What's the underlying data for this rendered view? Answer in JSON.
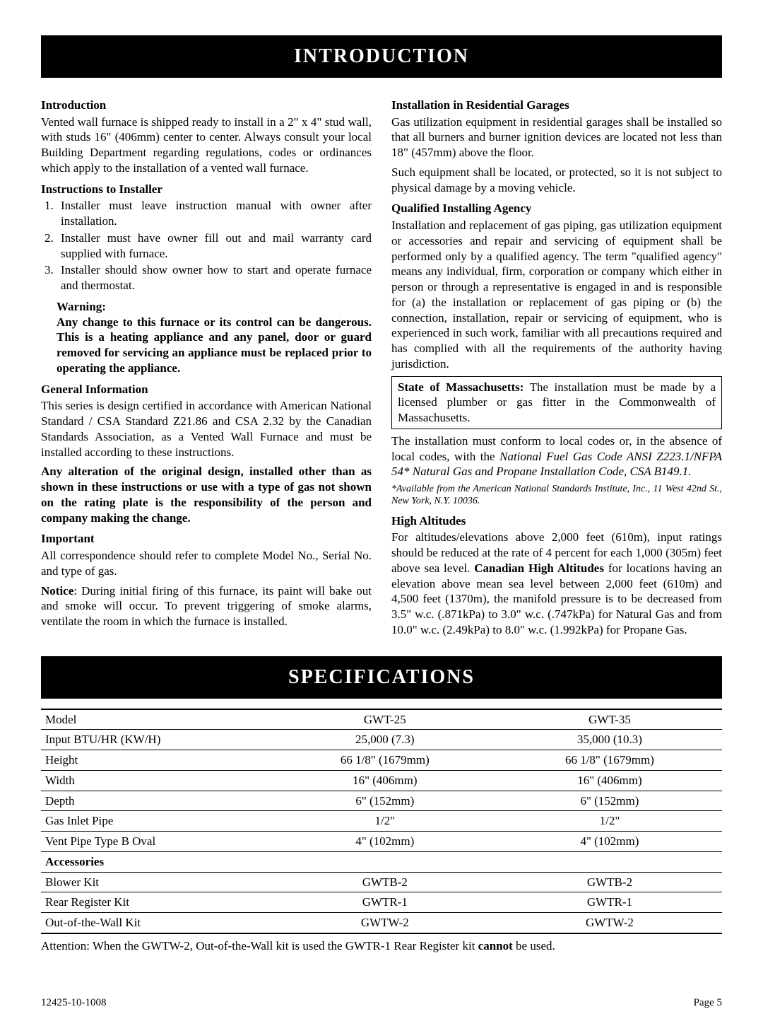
{
  "banner1": "INTRODUCTION",
  "banner2": "SPECIFICATIONS",
  "left": {
    "h_intro": "Introduction",
    "intro": "Vented wall furnace is shipped ready to install in a 2\" x 4\" stud wall, with studs 16\" (406mm) center to center. Always consult your local Building Department regarding regulations, codes or ordinances which apply to the installation of a vented wall furnace.",
    "h_instr": "Instructions to Installer",
    "li1": "Installer must leave instruction manual with owner after installation.",
    "li2": "Installer must have owner fill out and mail warranty card supplied with furnace.",
    "li3": "Installer should show owner how to start and operate furnace and thermostat.",
    "h_warn": "Warning:",
    "warn": "Any change to this furnace or its control can be dangerous. This is a heating appliance and any panel, door or guard removed for servicing an appliance must be replaced prior to operating the appliance.",
    "h_gen": "General Information",
    "gen": "This series is design certified in accordance with American National Standard / CSA Standard Z21.86 and CSA 2.32 by the Canadian Standards Association, as a Vented Wall Furnace and must be installed according to these instructions.",
    "alter": "Any alteration of the original design, installed other than as shown in these instructions or use with a type of gas not shown on the rating plate is the responsibility of the person and company making the change.",
    "h_imp": "Important",
    "imp": "All correspondence should refer to complete Model No., Serial No. and type of gas.",
    "notice_label": "Notice",
    "notice": ": During initial firing of this furnace, its paint will bake out and smoke will occur. To prevent triggering of smoke alarms, ventilate the room in which the furnace is installed."
  },
  "right": {
    "h_garage": "Installation in Residential Garages",
    "garage1": "Gas utilization equipment in residential garages shall be installed so that all burners and burner ignition devices are located not less than 18\" (457mm) above the floor.",
    "garage2": "Such equipment shall be located, or protected, so it is not subject to physical damage by a moving vehicle.",
    "h_qual": "Qualified Installing Agency",
    "qual": "Installation and replacement of gas piping, gas utilization equipment or accessories and repair and servicing of equipment shall be performed only by a qualified agency. The term \"qualified agency\" means any individual, firm, corporation or company which either in person or through a representative is engaged in and is responsible for (a) the installation or replacement of gas piping or (b) the connection, installation, repair or servicing of equipment, who is experienced in such work, familiar with all precautions required and has complied with all the requirements of the authority having jurisdiction.",
    "mass_label": "State of Massachusetts:",
    "mass": " The installation must be made by a licensed plumber or gas fitter in the Commonwealth of Massachusetts.",
    "conform1": "The installation must conform to local codes or, in the absence of local codes, with the ",
    "conform2": "National Fuel Gas Code ANSI Z223.1/NFPA 54* Natural Gas and Propane Installation Code, CSA B149.1.",
    "foot": "*Available from the American National Standards Institute, Inc., 11 West 42nd St., New York, N.Y. 10036.",
    "h_alt": "High Altitudes",
    "alt1": "For altitudes/elevations above 2,000 feet (610m), input ratings should be reduced at the rate of 4 percent for each 1,000 (305m) feet above sea level. ",
    "alt_bold": "Canadian High Altitudes",
    "alt2": " for locations having an elevation above mean sea level between 2,000 feet (610m) and 4,500 feet (1370m), the manifold pressure is to be decreased from 3.5\" w.c. (.871kPa) to 3.0\" w.c. (.747kPa) for Natural Gas and from 10.0\" w.c. (2.49kPa) to 8.0\" w.c. (1.992kPa) for Propane Gas."
  },
  "spec": {
    "table": [
      [
        "Model",
        "GWT-25",
        "GWT-35"
      ],
      [
        "Input BTU/HR (KW/H)",
        "25,000 (7.3)",
        "35,000 (10.3)"
      ],
      [
        "Height",
        "66 1/8\" (1679mm)",
        "66 1/8\" (1679mm)"
      ],
      [
        "Width",
        "16\" (406mm)",
        "16\" (406mm)"
      ],
      [
        "Depth",
        "6\" (152mm)",
        "6\" (152mm)"
      ],
      [
        "Gas Inlet Pipe",
        "1/2\"",
        "1/2\""
      ],
      [
        "Vent Pipe Type B Oval",
        "4\" (102mm)",
        "4\" (102mm)"
      ]
    ],
    "acc_header": "Accessories",
    "acc": [
      [
        "Blower Kit",
        "GWTB-2",
        "GWTB-2"
      ],
      [
        "Rear Register Kit",
        "GWTR-1",
        "GWTR-1"
      ],
      [
        "Out-of-the-Wall Kit",
        "GWTW-2",
        "GWTW-2"
      ]
    ],
    "attention_pre": "Attention: When the GWTW-2, Out-of-the-Wall kit is used the GWTR-1 Rear Register kit ",
    "attention_bold": "cannot",
    "attention_post": " be used."
  },
  "footer": {
    "left": "12425-10-1008",
    "right": "Page 5"
  }
}
